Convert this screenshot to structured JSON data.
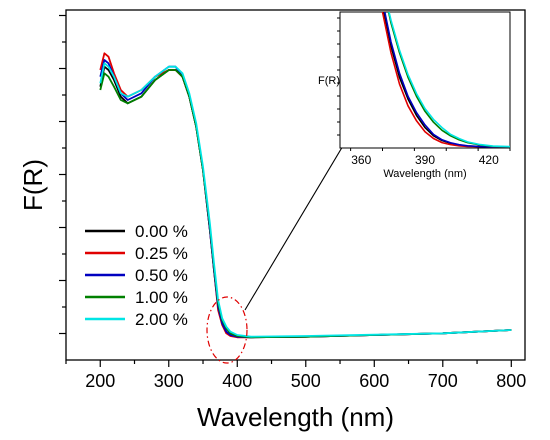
{
  "chart_data": {
    "type": "line",
    "xlabel": "Wavelength (nm)",
    "ylabel": "F(R)",
    "xlim": [
      150,
      820
    ],
    "ylim": [
      -0.05,
      1.0
    ],
    "x_ticks": [
      200,
      300,
      400,
      500,
      600,
      700,
      800
    ],
    "y_ticks_labeled": false,
    "legend_position": "lower-left",
    "series": [
      {
        "name": "0.00 %",
        "color": "#000000",
        "x": [
          200,
          206,
          212,
          220,
          230,
          240,
          260,
          280,
          300,
          310,
          320,
          330,
          340,
          350,
          360,
          366,
          372,
          378,
          384,
          390,
          400,
          420,
          500,
          600,
          700,
          800
        ],
        "y": [
          0.77,
          0.83,
          0.82,
          0.79,
          0.74,
          0.72,
          0.74,
          0.79,
          0.82,
          0.82,
          0.8,
          0.74,
          0.65,
          0.52,
          0.34,
          0.22,
          0.11,
          0.06,
          0.035,
          0.025,
          0.02,
          0.018,
          0.02,
          0.025,
          0.03,
          0.04
        ]
      },
      {
        "name": "0.25 %",
        "color": "#e00000",
        "x": [
          200,
          206,
          212,
          220,
          230,
          240,
          260,
          280,
          300,
          310,
          320,
          330,
          340,
          350,
          360,
          366,
          372,
          378,
          384,
          390,
          400,
          420,
          500,
          600,
          700,
          800
        ],
        "y": [
          0.82,
          0.87,
          0.86,
          0.81,
          0.76,
          0.74,
          0.76,
          0.8,
          0.82,
          0.82,
          0.8,
          0.74,
          0.65,
          0.52,
          0.34,
          0.22,
          0.1,
          0.055,
          0.03,
          0.022,
          0.018,
          0.018,
          0.02,
          0.025,
          0.03,
          0.04
        ]
      },
      {
        "name": "0.50 %",
        "color": "#0000c0",
        "x": [
          200,
          206,
          212,
          220,
          230,
          240,
          260,
          280,
          300,
          310,
          320,
          330,
          340,
          350,
          360,
          366,
          372,
          378,
          384,
          390,
          400,
          420,
          500,
          600,
          700,
          800
        ],
        "y": [
          0.8,
          0.85,
          0.84,
          0.8,
          0.75,
          0.73,
          0.75,
          0.8,
          0.83,
          0.83,
          0.8,
          0.74,
          0.65,
          0.52,
          0.34,
          0.22,
          0.11,
          0.06,
          0.035,
          0.025,
          0.02,
          0.018,
          0.02,
          0.025,
          0.03,
          0.04
        ]
      },
      {
        "name": "1.00 %",
        "color": "#008000",
        "x": [
          200,
          206,
          212,
          220,
          230,
          240,
          260,
          280,
          300,
          310,
          320,
          330,
          340,
          350,
          360,
          366,
          372,
          378,
          384,
          390,
          400,
          420,
          500,
          600,
          700,
          800
        ],
        "y": [
          0.76,
          0.81,
          0.8,
          0.77,
          0.73,
          0.72,
          0.74,
          0.79,
          0.82,
          0.82,
          0.8,
          0.74,
          0.65,
          0.52,
          0.35,
          0.23,
          0.12,
          0.07,
          0.045,
          0.03,
          0.022,
          0.018,
          0.02,
          0.025,
          0.03,
          0.04
        ]
      },
      {
        "name": "2.00 %",
        "color": "#00e5e5",
        "x": [
          200,
          206,
          212,
          220,
          230,
          240,
          260,
          280,
          300,
          310,
          320,
          330,
          340,
          350,
          360,
          366,
          372,
          378,
          384,
          390,
          400,
          420,
          500,
          600,
          700,
          800
        ],
        "y": [
          0.78,
          0.84,
          0.83,
          0.8,
          0.75,
          0.74,
          0.76,
          0.8,
          0.83,
          0.83,
          0.81,
          0.75,
          0.66,
          0.53,
          0.36,
          0.24,
          0.13,
          0.075,
          0.05,
          0.035,
          0.025,
          0.02,
          0.022,
          0.026,
          0.03,
          0.04
        ]
      }
    ],
    "inset": {
      "xlabel": "Wavelength (nm)",
      "ylabel": "F(R)",
      "xlim": [
        350,
        430
      ],
      "ylim": [
        0,
        1
      ],
      "x_ticks": [
        360,
        390,
        420
      ],
      "series": [
        {
          "name": "0.00 %",
          "color": "#000000",
          "x": [
            370,
            374,
            378,
            382,
            386,
            390,
            394,
            398,
            402,
            406,
            410,
            416,
            422,
            430
          ],
          "y": [
            1.05,
            0.75,
            0.52,
            0.36,
            0.24,
            0.15,
            0.09,
            0.055,
            0.035,
            0.022,
            0.015,
            0.01,
            0.008,
            0.008
          ]
        },
        {
          "name": "0.25 %",
          "color": "#e00000",
          "x": [
            370,
            374,
            378,
            382,
            386,
            390,
            394,
            398,
            402,
            406,
            410,
            416,
            422,
            430
          ],
          "y": [
            1.0,
            0.7,
            0.47,
            0.31,
            0.2,
            0.12,
            0.07,
            0.04,
            0.025,
            0.016,
            0.012,
            0.01,
            0.008,
            0.008
          ]
        },
        {
          "name": "0.50 %",
          "color": "#0000c0",
          "x": [
            370,
            374,
            378,
            382,
            386,
            390,
            394,
            398,
            402,
            406,
            410,
            416,
            422,
            430
          ],
          "y": [
            1.08,
            0.78,
            0.55,
            0.38,
            0.26,
            0.17,
            0.1,
            0.06,
            0.038,
            0.024,
            0.016,
            0.01,
            0.008,
            0.008
          ]
        },
        {
          "name": "1.00 %",
          "color": "#008000",
          "x": [
            370,
            374,
            378,
            382,
            386,
            390,
            394,
            398,
            402,
            406,
            410,
            416,
            422,
            430
          ],
          "y": [
            1.2,
            0.92,
            0.7,
            0.52,
            0.38,
            0.27,
            0.19,
            0.13,
            0.09,
            0.06,
            0.04,
            0.022,
            0.012,
            0.008
          ]
        },
        {
          "name": "2.00 %",
          "color": "#00e5e5",
          "x": [
            370,
            374,
            378,
            382,
            386,
            390,
            394,
            398,
            402,
            406,
            410,
            416,
            422,
            430
          ],
          "y": [
            1.2,
            0.94,
            0.72,
            0.54,
            0.4,
            0.29,
            0.21,
            0.15,
            0.1,
            0.07,
            0.045,
            0.025,
            0.014,
            0.01
          ]
        }
      ]
    },
    "annotation": {
      "type": "dash-dot ellipse with arrow to inset",
      "color": "#e00000",
      "center": [
        385,
        0.04
      ]
    }
  }
}
